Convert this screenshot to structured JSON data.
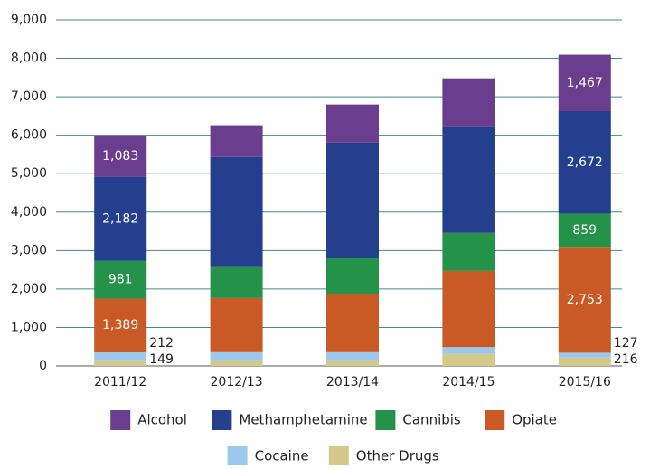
{
  "chart_data": {
    "type": "stacked_bar",
    "categories": [
      "2011/12",
      "2012/13",
      "2013/14",
      "2014/15",
      "2015/16"
    ],
    "series": [
      {
        "name": "Other Drugs",
        "color": "#d4c98a",
        "values": [
          149,
          150,
          150,
          310,
          216
        ],
        "value_labels": [
          "149",
          null,
          null,
          null,
          "216"
        ]
      },
      {
        "name": "Cocaine",
        "color": "#9cc8ec",
        "values": [
          212,
          230,
          230,
          180,
          127
        ],
        "value_labels": [
          "212",
          null,
          null,
          null,
          "127"
        ]
      },
      {
        "name": "Opiate",
        "color": "#c95a26",
        "values": [
          1389,
          1385,
          1500,
          1980,
          2753
        ],
        "value_labels": [
          "1,389",
          null,
          null,
          null,
          "2,753"
        ]
      },
      {
        "name": "Cannibis",
        "color": "#25924a",
        "values": [
          981,
          825,
          940,
          990,
          859
        ],
        "value_labels": [
          "981",
          null,
          null,
          null,
          "859"
        ]
      },
      {
        "name": "Methamphetamine",
        "color": "#253f8f",
        "values": [
          2182,
          2845,
          2990,
          2775,
          2672
        ],
        "value_labels": [
          "2,182",
          null,
          null,
          null,
          "2,672"
        ]
      },
      {
        "name": "Alcohol",
        "color": "#6b3d8e",
        "values": [
          1083,
          825,
          990,
          1245,
          1467
        ],
        "value_labels": [
          "1,083",
          null,
          null,
          null,
          "1,467"
        ]
      }
    ],
    "ylim": [
      0,
      9000
    ],
    "yticks": [
      0,
      {
        "value": 1000,
        "label": "1,000"
      },
      {
        "value": 2000,
        "label": "2,000"
      },
      {
        "value": 3000,
        "label": "3,000"
      },
      {
        "value": 4000,
        "label": "4,000"
      },
      {
        "value": 5000,
        "label": "5,000"
      },
      {
        "value": 6000,
        "label": "6,000"
      },
      {
        "value": 7000,
        "label": "7,000"
      },
      {
        "value": 8000,
        "label": "8,000"
      },
      {
        "value": 9000,
        "label": "9,000"
      }
    ],
    "grid": true
  }
}
